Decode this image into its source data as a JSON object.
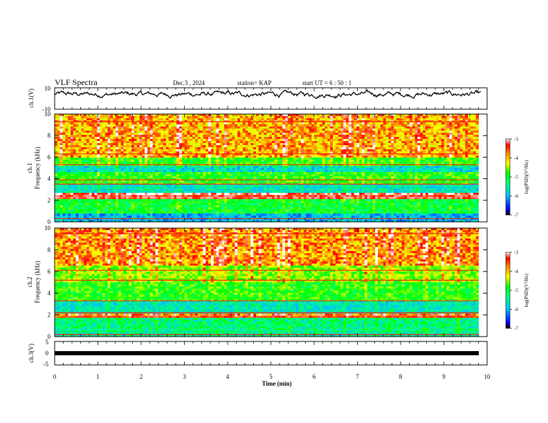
{
  "header": {
    "title": "VLF Spectra",
    "date": "Dec.3  , 2024",
    "station": "station= KAP",
    "start": "start  UT =   6  : 50 : 1"
  },
  "colors": {
    "spectrum": [
      "#000080",
      "#0000ff",
      "#00bfff",
      "#00ff80",
      "#00ff00",
      "#bfff00",
      "#ffff00",
      "#ff8000",
      "#ff0000",
      "#ff00ff",
      "#ffffff"
    ],
    "waveform": "#000000"
  },
  "chart_data": [
    {
      "type": "line",
      "name": "ch1-waveform",
      "ylabel": "ch.1(V)",
      "ylim": [
        -10,
        10
      ],
      "yticklabels": [
        "10",
        "-10"
      ],
      "xlim": [
        0,
        10
      ],
      "description_series": "noisy waveform mostly between 0 and 8 V",
      "mean": 4,
      "amplitude": 4
    },
    {
      "type": "heatmap",
      "name": "ch1-spectrogram",
      "ylabel": "ch.1\nFrequency (kHz)",
      "ylabel_lines": [
        "ch.1",
        "Frequency  (kHz)"
      ],
      "ylim": [
        0,
        10
      ],
      "yticks": [
        "0",
        "2",
        "4",
        "6",
        "8",
        "10"
      ],
      "xlim": [
        0,
        10
      ],
      "data_end_min": 9.8,
      "colorbar": {
        "label": "log(PSD)(V²/Hz)",
        "range": [
          -7,
          -3
        ],
        "ticks": [
          "-3",
          "-4",
          "-5",
          "-6",
          "-7"
        ]
      },
      "bands_khz": [
        {
          "from": 0.0,
          "to": 0.8,
          "level": -6.0
        },
        {
          "from": 0.8,
          "to": 2.2,
          "level": -5.0
        },
        {
          "from": 2.2,
          "to": 2.6,
          "level": -3.2
        },
        {
          "from": 2.6,
          "to": 3.4,
          "level": -5.6
        },
        {
          "from": 3.4,
          "to": 4.6,
          "level": -4.8
        },
        {
          "from": 4.6,
          "to": 5.2,
          "level": -5.7
        },
        {
          "from": 5.2,
          "to": 6.0,
          "level": -4.8
        },
        {
          "from": 6.0,
          "to": 10.0,
          "level": -3.8
        }
      ]
    },
    {
      "type": "heatmap",
      "name": "ch2-spectrogram",
      "ylabel_lines": [
        "ch.2",
        "Frequency  (kHz)"
      ],
      "ylim": [
        0,
        10
      ],
      "yticks": [
        "0",
        "2",
        "4",
        "6",
        "8",
        "10"
      ],
      "xlim": [
        0,
        10
      ],
      "data_end_min": 9.8,
      "colorbar": {
        "label": "log(PSD)(V²/Hz)",
        "range": [
          -7,
          -3
        ],
        "ticks": [
          "-3",
          "-4",
          "-5",
          "-6",
          "-7"
        ]
      },
      "bands_khz": [
        {
          "from": 0.0,
          "to": 0.4,
          "level": -5.5
        },
        {
          "from": 0.4,
          "to": 1.8,
          "level": -5.3
        },
        {
          "from": 1.8,
          "to": 2.2,
          "level": -3.5
        },
        {
          "from": 2.2,
          "to": 3.2,
          "level": -5.6
        },
        {
          "from": 3.2,
          "to": 5.0,
          "level": -4.8
        },
        {
          "from": 5.0,
          "to": 6.5,
          "level": -4.5
        },
        {
          "from": 6.5,
          "to": 10.0,
          "level": -3.7
        }
      ]
    },
    {
      "type": "line",
      "name": "ch3-waveform",
      "ylabel": "ch.3(V)",
      "ylim": [
        -5,
        5
      ],
      "yticklabels": [
        "5",
        "0",
        "-5"
      ],
      "xlim": [
        0,
        10
      ],
      "value": 0
    }
  ],
  "xaxis": {
    "label": "Time  (min)",
    "ticks": [
      "0",
      "1",
      "2",
      "3",
      "4",
      "5",
      "6",
      "7",
      "8",
      "9",
      "10"
    ]
  }
}
